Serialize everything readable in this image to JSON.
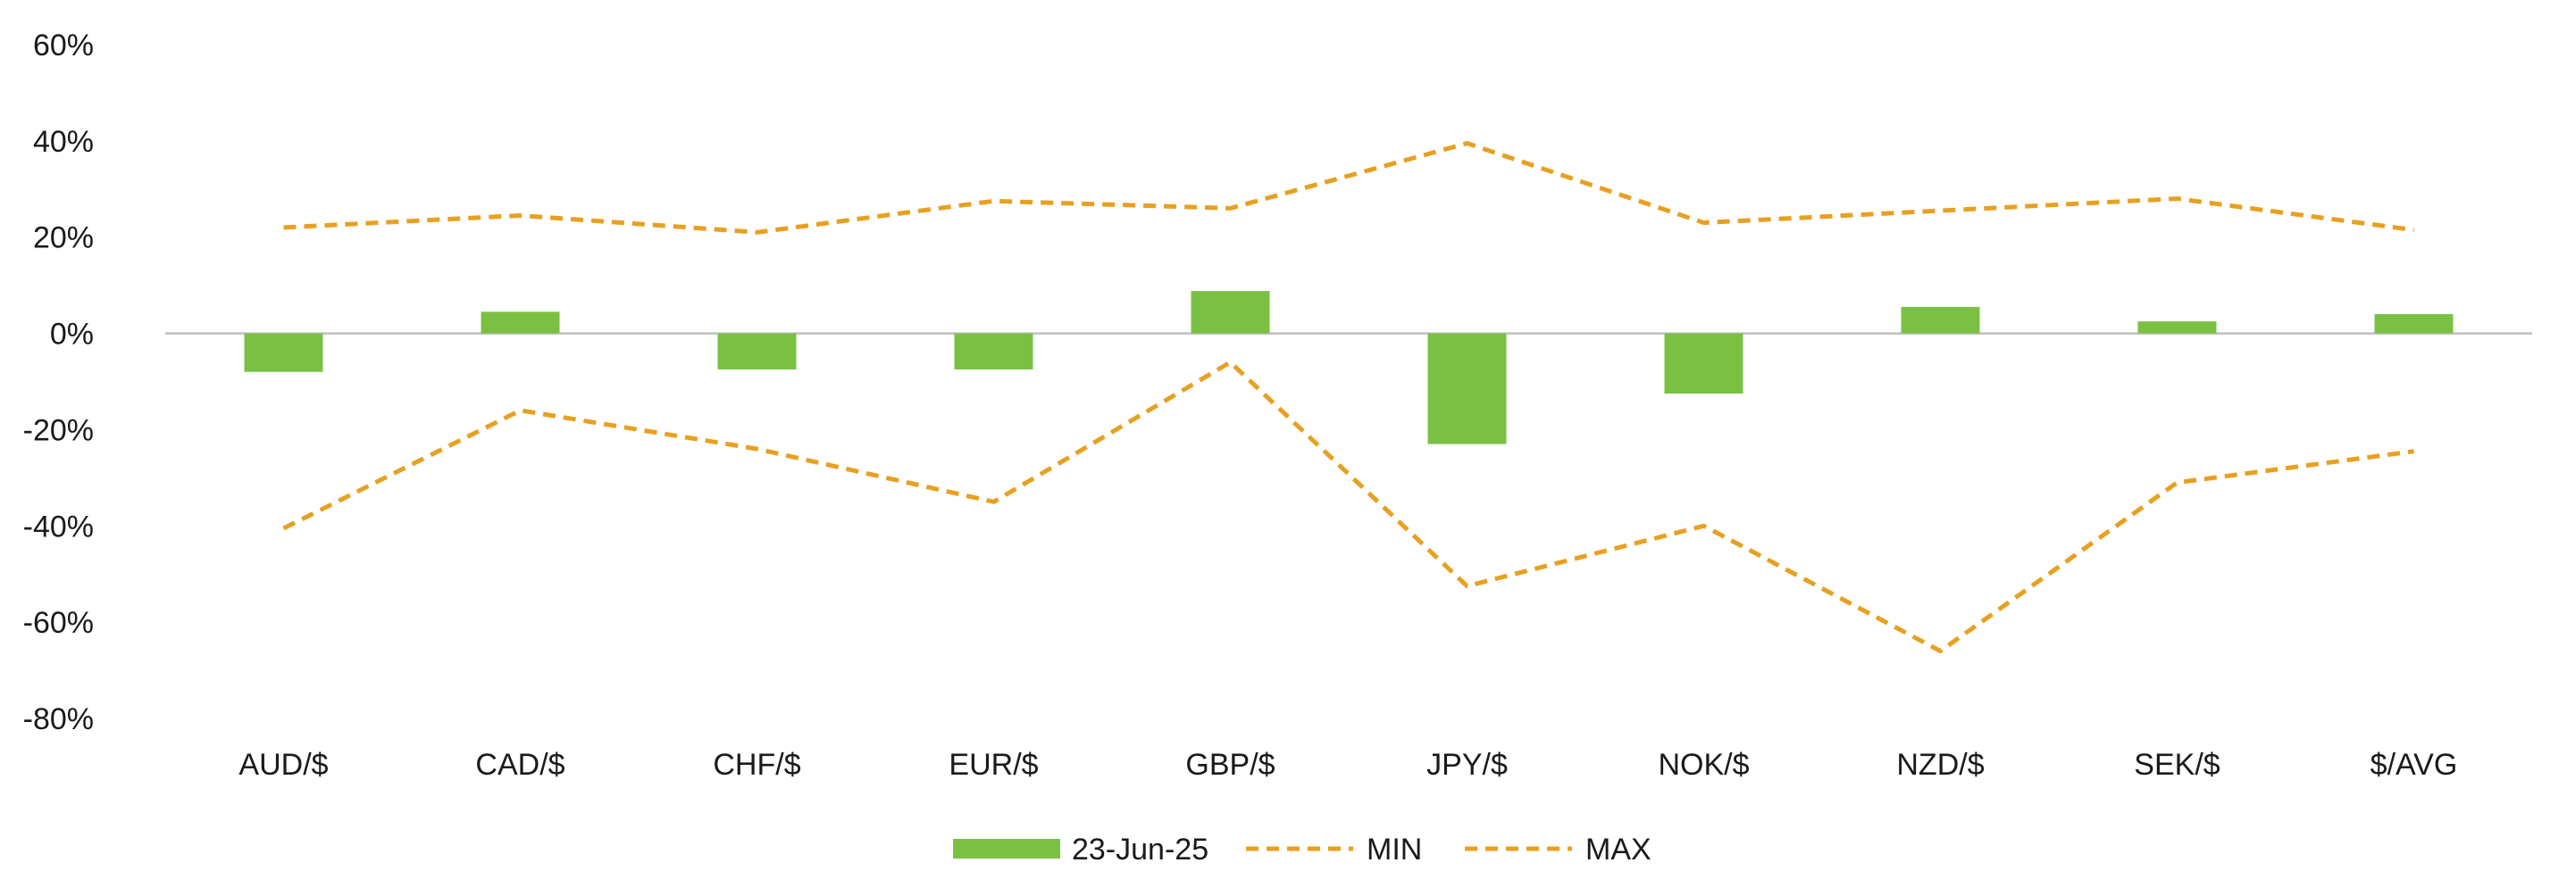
{
  "chart_data": {
    "type": "bar",
    "title": "",
    "xlabel": "",
    "ylabel": "",
    "ylim": [
      -80,
      60
    ],
    "yticks": [
      60,
      40,
      20,
      0,
      -20,
      -40,
      -60,
      -80
    ],
    "ytick_suffix": "%",
    "grid": false,
    "legend_position": "bottom",
    "categories": [
      "AUD/$",
      "CAD/$",
      "CHF/$",
      "EUR/$",
      "GBP/$",
      "JPY/$",
      "NOK/$",
      "NZD/$",
      "SEK/$",
      "$/AVG"
    ],
    "series": [
      {
        "name": "23-Jun-25",
        "type": "bar",
        "color": "#7ac143",
        "values": [
          -8,
          4.5,
          -7.5,
          -7.5,
          8.8,
          -23,
          -12.5,
          5.5,
          2.5,
          4
        ]
      },
      {
        "name": "MIN",
        "type": "line",
        "dash": "dashed",
        "color": "#e8a020",
        "values": [
          -40.5,
          -16,
          -24,
          -35,
          -6,
          -52.5,
          -40,
          -66,
          -31,
          -24.5
        ]
      },
      {
        "name": "MAX",
        "type": "line",
        "dash": "dashed",
        "color": "#e8a020",
        "values": [
          22,
          24.5,
          21,
          27.5,
          26,
          39.5,
          23,
          25.5,
          28,
          21.5
        ]
      }
    ]
  }
}
